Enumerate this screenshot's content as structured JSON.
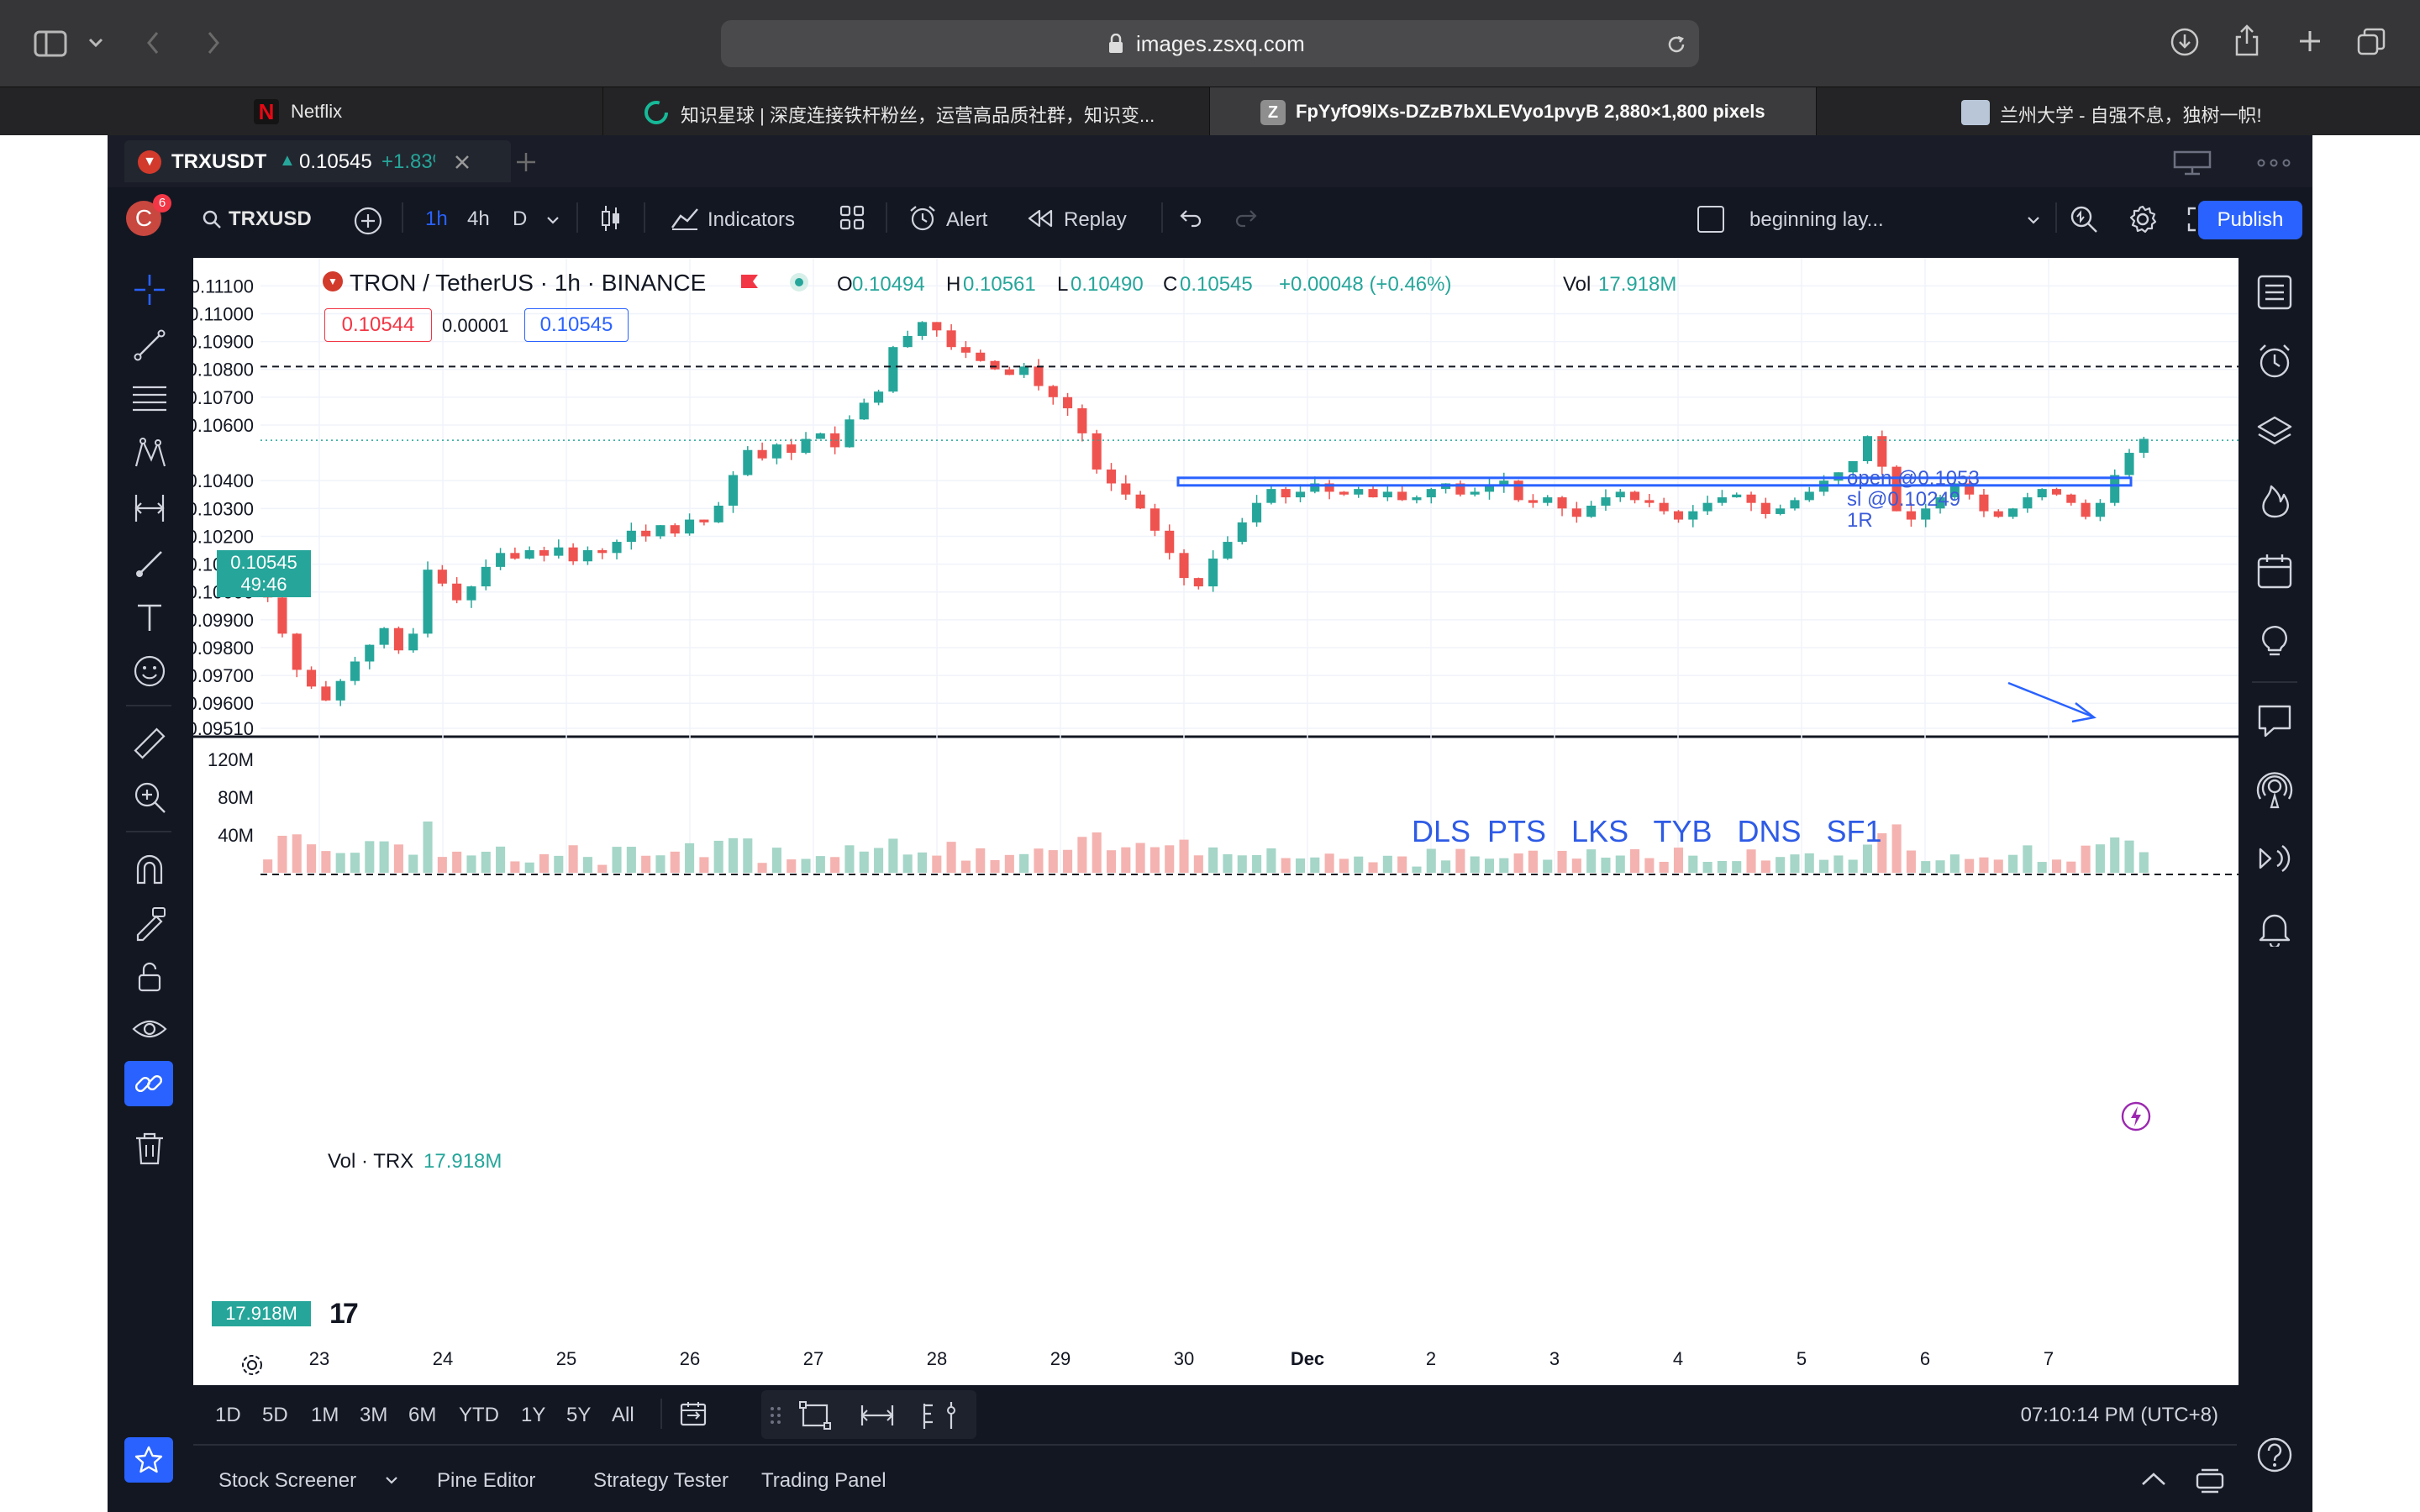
{
  "browser": {
    "address": "images.zsxq.com",
    "tabs": [
      {
        "label": "Netflix",
        "icon": "netflix-icon"
      },
      {
        "label": "知识星球 | 深度连接铁杆粉丝，运营高品质社群，知识变...",
        "icon": "zsxq-icon"
      },
      {
        "label": "FpYyfO9lXs-DZzB7bXLEVyo1pvyB 2,880×1,800 pixels",
        "icon": "z-icon"
      },
      {
        "label": "兰州大学 - 自强不息，独树一帜!",
        "icon": "lzu-icon"
      }
    ]
  },
  "tv_tab": {
    "symbol": "TRXUSDT",
    "arrow": "▲",
    "price": "0.10545",
    "change": "+1.83%"
  },
  "toolbar": {
    "avatar_letter": "C",
    "avatar_badge": "6",
    "symbol_search": "TRXUSD",
    "intervals": [
      "1h",
      "4h",
      "D"
    ],
    "indicators_label": "Indicators",
    "alert_label": "Alert",
    "replay_label": "Replay",
    "layout_label": "beginning lay...",
    "publish_label": "Publish"
  },
  "legend": {
    "title": "TRON / TetherUS · 1h · BINANCE",
    "o_label": "O",
    "o_value": "0.10494",
    "h_label": "H",
    "h_value": "0.10561",
    "l_label": "L",
    "l_value": "0.10490",
    "c_label": "C",
    "c_value": "0.10545",
    "change": "+0.00048 (+0.46%)",
    "vol_label": "Vol",
    "vol_value": "17.918M",
    "bid": "0.10544",
    "spread": "0.00001",
    "ask": "0.10545"
  },
  "price_axis": {
    "ticks": [
      "0.11100",
      "0.11000",
      "0.10900",
      "0.10800",
      "0.10700",
      "0.10600",
      "0.10400",
      "0.10300",
      "0.10200",
      "0.10100",
      "0.10000",
      "0.09900",
      "0.09800",
      "0.09700",
      "0.09600",
      "0.09510"
    ],
    "current_price": "0.10545",
    "countdown": "49:46"
  },
  "annotations": {
    "open": "open @0.1053",
    "sl": "sl @0.10249",
    "rr": "1R",
    "tickers": "DLS  PTS   LKS   TYB   DNS   SF1"
  },
  "volume_pane": {
    "label": "Vol · TRX",
    "value": "17.918M",
    "ticks": [
      "120M",
      "80M",
      "40M"
    ],
    "badge": "17.918M"
  },
  "time_axis": {
    "labels": [
      "23",
      "24",
      "25",
      "26",
      "27",
      "28",
      "29",
      "30",
      "Dec",
      "2",
      "3",
      "4",
      "5",
      "6",
      "7"
    ]
  },
  "bottom_bar": {
    "ranges": [
      "1D",
      "5D",
      "1M",
      "3M",
      "6M",
      "YTD",
      "1Y",
      "5Y",
      "All"
    ],
    "clock": "07:10:14 PM (UTC+8)"
  },
  "footer_tabs": [
    "Stock Screener",
    "Pine Editor",
    "Strategy Tester",
    "Trading Panel"
  ],
  "chart_data": {
    "type": "candlestick",
    "title": "TRON / TetherUS · 1h · BINANCE",
    "x_labels": [
      "23",
      "24",
      "25",
      "26",
      "27",
      "28",
      "29",
      "30",
      "Dec",
      "2",
      "3",
      "4",
      "5",
      "6",
      "7"
    ],
    "y_range": [
      0.0951,
      0.1111
    ],
    "candles_close": [
      0.0998,
      0.0985,
      0.0972,
      0.0966,
      0.0961,
      0.0968,
      0.0975,
      0.0981,
      0.0987,
      0.0979,
      0.0985,
      0.1008,
      0.1003,
      0.0997,
      0.1002,
      0.1009,
      0.1014,
      0.1012,
      0.1015,
      0.1013,
      0.1016,
      0.1011,
      0.1015,
      0.1014,
      0.1018,
      0.1022,
      0.102,
      0.1024,
      0.1021,
      0.1026,
      0.1025,
      0.1031,
      0.1042,
      0.1051,
      0.1048,
      0.1053,
      0.105,
      0.1055,
      0.1057,
      0.1052,
      0.1062,
      0.1068,
      0.1072,
      0.1088,
      0.1092,
      0.1097,
      0.1094,
      0.1088,
      0.1086,
      0.1083,
      0.108,
      0.1078,
      0.1081,
      0.1074,
      0.107,
      0.1066,
      0.1057,
      0.1044,
      0.1039,
      0.1035,
      0.103,
      0.1022,
      0.1014,
      0.1005,
      0.1002,
      0.1012,
      0.1018,
      0.1025,
      0.1032,
      0.1037,
      0.1034,
      0.1036,
      0.1039,
      0.1036,
      0.1035,
      0.1037,
      0.1034,
      0.1036,
      0.1033,
      0.1034,
      0.1037,
      0.1039,
      0.1035,
      0.1036,
      0.1038,
      0.104,
      0.1033,
      0.1032,
      0.1034,
      0.103,
      0.1027,
      0.1031,
      0.1034,
      0.1036,
      0.1033,
      0.1032,
      0.1029,
      0.1026,
      0.1029,
      0.1032,
      0.1034,
      0.1035,
      0.1032,
      0.1028,
      0.103,
      0.1033,
      0.1036,
      0.104,
      0.1043,
      0.1047,
      0.1056,
      0.1045,
      0.1029,
      0.1026,
      0.103,
      0.1034,
      0.1039,
      0.1035,
      0.1029,
      0.1027,
      0.103,
      0.1034,
      0.1037,
      0.1035,
      0.1032,
      0.1027,
      0.1032,
      0.1042,
      0.105,
      0.1055
    ],
    "volume_range": [
      0,
      135
    ],
    "volume_unit": "M",
    "volume_last": 17.918,
    "horizontal_line": 0.1081,
    "current_price": 0.10545,
    "box_level": 0.10395
  },
  "colors": {
    "up": "#26a69a",
    "down": "#ef5350",
    "accent": "#2962ff",
    "drawing": "#3a5bd9",
    "browser_bg": "#353537",
    "tv_dark": "#1e222d"
  }
}
